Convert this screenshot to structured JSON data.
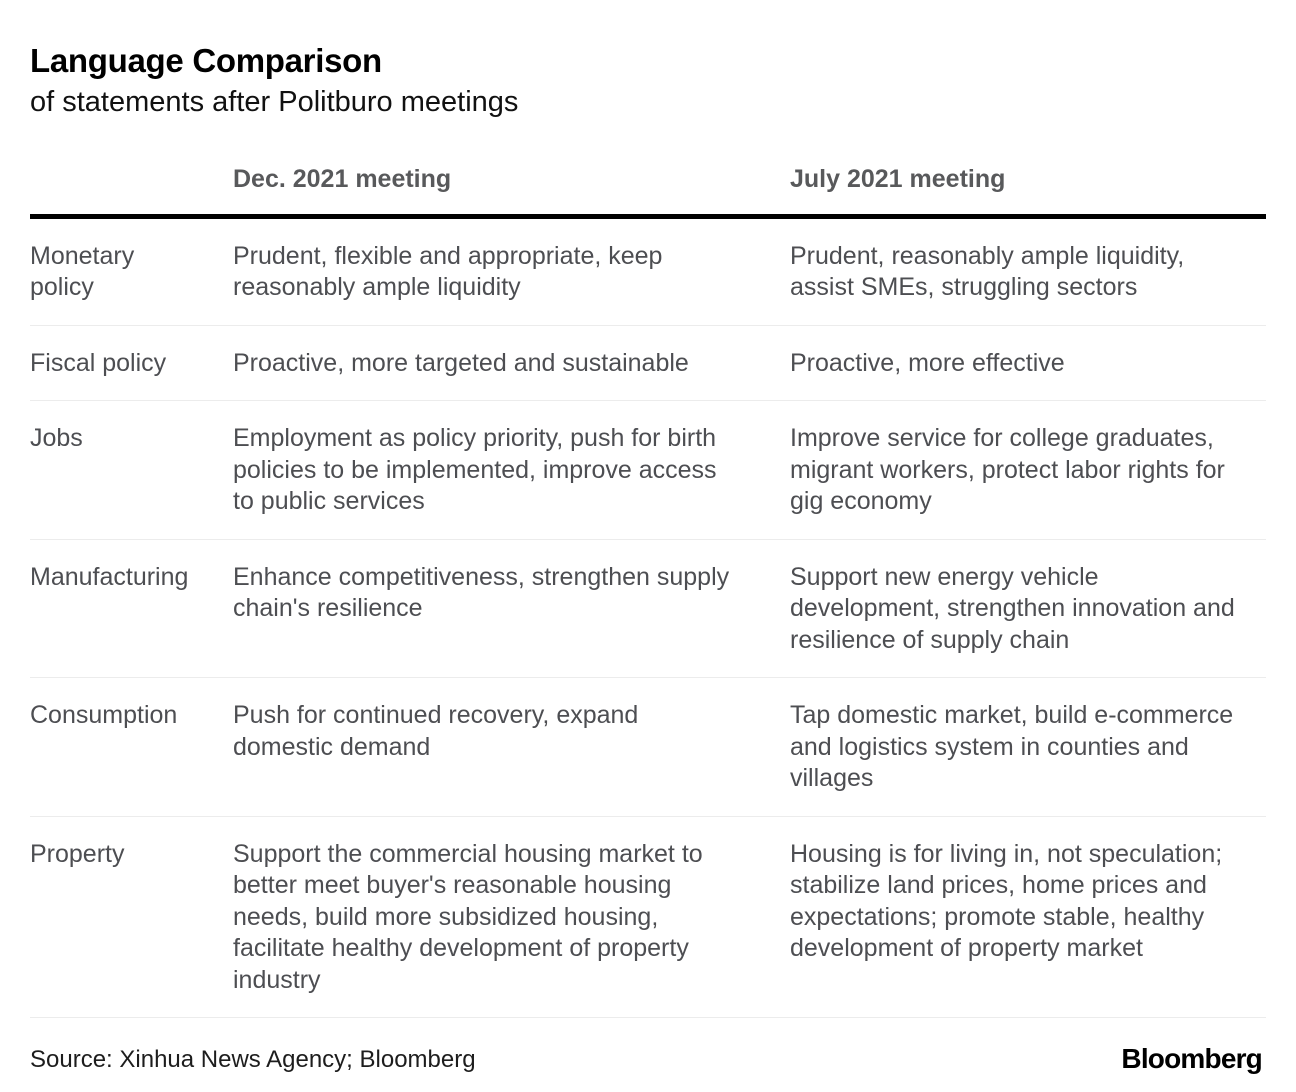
{
  "header": {
    "title": "Language Comparison",
    "subtitle": "of statements after Politburo meetings"
  },
  "chart_data": {
    "type": "table",
    "title": "Language Comparison of statements after Politburo meetings",
    "columns": [
      "",
      "Dec. 2021 meeting",
      "July 2021 meeting"
    ],
    "rows": [
      {
        "category": "Monetary policy",
        "dec_2021": "Prudent, flexible and appropriate, keep reasonably ample liquidity",
        "july_2021": "Prudent, reasonably ample liquidity, assist SMEs, struggling sectors"
      },
      {
        "category": "Fiscal policy",
        "dec_2021": "Proactive, more targeted and sustainable",
        "july_2021": "Proactive, more effective"
      },
      {
        "category": "Jobs",
        "dec_2021": "Employment as policy priority, push for birth policies to be implemented, improve access to public services",
        "july_2021": "Improve service for college graduates, migrant workers, protect labor rights for gig economy"
      },
      {
        "category": "Manufacturing",
        "dec_2021": "Enhance competitiveness, strengthen supply chain's resilience",
        "july_2021": "Support new energy vehicle development, strengthen innovation and resilience of supply chain"
      },
      {
        "category": "Consumption",
        "dec_2021": "Push for continued recovery, expand domestic demand",
        "july_2021": "Tap domestic market, build e-commerce and logistics system in counties and villages"
      },
      {
        "category": "Property",
        "dec_2021": "Support the commercial housing market to better meet buyer's reasonable housing needs, build more subsidized housing, facilitate healthy development of property industry",
        "july_2021": "Housing is for living in, not speculation; stabilize land prices, home prices and expectations; promote stable, healthy development of property market"
      }
    ],
    "layout": {
      "grid": "off",
      "header_rule": "thick-black",
      "row_dividers": "light-gray"
    }
  },
  "footer": {
    "source": "Source: Xinhua News Agency; Bloomberg",
    "logo": "Bloomberg"
  },
  "colors": {
    "background": "#ffffff",
    "title_text": "#000000",
    "column_header_text": "#58595b",
    "body_text": "#4d4e52",
    "header_rule": "#000000",
    "row_divider": "#ececec"
  }
}
